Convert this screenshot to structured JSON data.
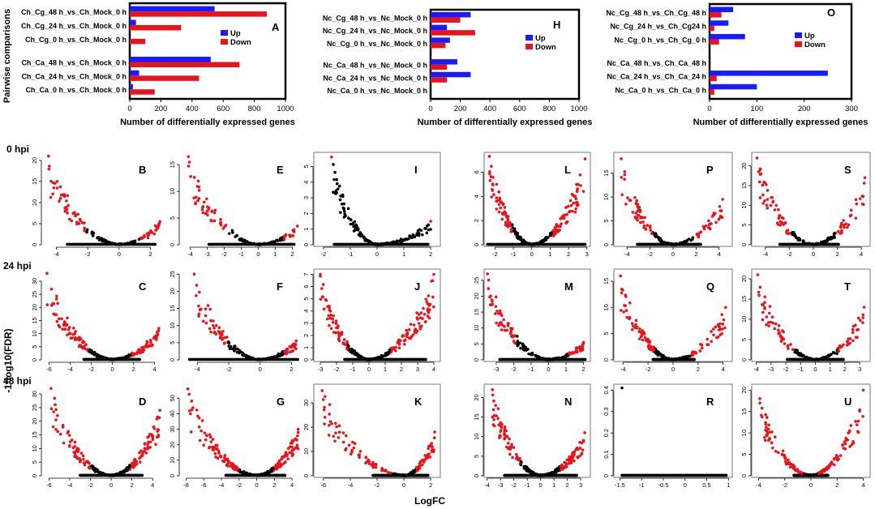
{
  "figure": {
    "row_labels": [
      "0 hpi",
      "24 hpi",
      "48 hpi"
    ],
    "y_axis_title": "-1*log10(FDR)",
    "x_axis_title": "LogFC"
  },
  "chart_data": [
    {
      "type": "bar",
      "panel": "A",
      "orientation": "horizontal",
      "ylabel": "Pairwise comparisons",
      "xlabel": "Number of differentially expressed genes",
      "xlim": [
        0,
        1000
      ],
      "xticks": [
        0,
        200,
        400,
        600,
        800,
        1000
      ],
      "legend": [
        "Up",
        "Down"
      ],
      "categories": [
        "Ch_Cg_48 h_vs_Ch_Mock_0 h",
        "Ch_Cg_24 h_vs_Ch_Mock_0 h",
        "Ch_Cg_0 h_vs_Ch_Mock_0 h",
        "Ch_Ca_48 h_vs_Ch_Mock_0 h",
        "Ch_Ca_24 h_vs_Ch_Mock_0 h",
        "Ch_Ca_0 h_vs_Ch_Mock_0 h"
      ],
      "series": [
        {
          "name": "Up",
          "values": [
            545,
            40,
            0,
            520,
            60,
            20
          ]
        },
        {
          "name": "Down",
          "values": [
            880,
            330,
            100,
            705,
            445,
            160
          ]
        }
      ]
    },
    {
      "type": "bar",
      "panel": "H",
      "orientation": "horizontal",
      "xlabel": "Number of differentially expressed genes",
      "xlim": [
        0,
        1000
      ],
      "xticks": [
        0,
        200,
        400,
        600,
        800,
        1000
      ],
      "legend": [
        "Up",
        "Down"
      ],
      "categories": [
        "Nc_Cg_48 h_vs_Nc_Mock_0 h",
        "Nc_Cg_24 h_vs_Nc_Mock_0 h",
        "Nc_Cg_0 h_vs_Nc_Mock_0 h",
        "Nc_Ca_48 h_vs_Nc_Mock_0 h",
        "Nc_Ca_24 h_vs_Nc_Mock_0 h",
        "Nc_Ca_0 h_vs_Nc_Mock_0 h"
      ],
      "series": [
        {
          "name": "Up",
          "values": [
            270,
            110,
            130,
            180,
            270,
            0
          ]
        },
        {
          "name": "Down",
          "values": [
            200,
            300,
            100,
            110,
            110,
            0
          ]
        }
      ]
    },
    {
      "type": "bar",
      "panel": "O",
      "orientation": "horizontal",
      "xlabel": "Number of differentially expressed genes",
      "xlim": [
        0,
        300
      ],
      "xticks": [
        0,
        100,
        200,
        300
      ],
      "legend": [
        "Up",
        "Down"
      ],
      "categories": [
        "Nc_Cg_48 h_vs_Ch_Cg_48 h",
        "Nc_Cg_24 h_vs_Ch_Cg24 h",
        "Nc_Cg_0 h_vs_Ch_Cg_0 h",
        "Nc_Ca_48 h_vs_Ch_Ca_48 h",
        "Nc_Ca_24 h_vs_Ch_Ca_24 h",
        "Nc_Ca_0 h_vs_Ch_Ca_0 h"
      ],
      "series": [
        {
          "name": "Up",
          "values": [
            50,
            40,
            75,
            0,
            250,
            100
          ]
        },
        {
          "name": "Down",
          "values": [
            25,
            10,
            20,
            0,
            15,
            10
          ]
        }
      ]
    },
    {
      "type": "scatter",
      "panel": "B",
      "xticks": [
        -4,
        -2,
        0,
        2
      ],
      "yticks": [
        0,
        5,
        10,
        15,
        20
      ],
      "xlim": [
        -4.8,
        2.8
      ],
      "ylim": [
        0,
        21.5
      ],
      "left_min": -4.5,
      "right_max": 2.6,
      "left_peak": 21,
      "right_peak": 5.5,
      "thr_left": -2.2,
      "thr_right": 1.3,
      "dense_left": 0.9,
      "dense_right": 0.5,
      "base_left": -3.3,
      "base_right": 2.3
    },
    {
      "type": "scatter",
      "panel": "E",
      "xticks": [
        -4,
        -3,
        -2,
        -1,
        0,
        1,
        2
      ],
      "yticks": [
        0,
        5,
        10,
        15
      ],
      "xlim": [
        -4.5,
        2.5
      ],
      "ylim": [
        0,
        17
      ],
      "left_min": -4.1,
      "right_max": 2.3,
      "left_peak": 16.5,
      "right_peak": 3.5,
      "thr_left": -1.8,
      "thr_right": 1.5,
      "dense_left": 0.8,
      "dense_right": 0.5,
      "base_left": -2.9,
      "base_right": 2.1
    },
    {
      "type": "scatter",
      "panel": "I",
      "xticks": [
        -2,
        -1,
        0,
        1,
        2
      ],
      "yticks": [
        0,
        1,
        2,
        3,
        4,
        5
      ],
      "xlim": [
        -2.3,
        2.3
      ],
      "ylim": [
        0,
        5.8
      ],
      "left_min": -1.7,
      "right_max": 2.0,
      "left_peak": 5.6,
      "right_peak": 1.5,
      "thr_left": -5,
      "thr_right": 5,
      "dense_left": 0.9,
      "dense_right": 0.9,
      "base_left": -1.6,
      "base_right": 1.9
    },
    {
      "type": "scatter",
      "panel": "L",
      "xticks": [
        -2,
        -1,
        0,
        1,
        2,
        3
      ],
      "yticks": [
        0,
        2,
        4,
        6
      ],
      "xlim": [
        -2.5,
        3.1
      ],
      "ylim": [
        0,
        7.5
      ],
      "left_min": -2.3,
      "right_max": 2.9,
      "left_peak": 7.3,
      "right_peak": 7.1,
      "thr_left": -1.1,
      "thr_right": 1.1,
      "dense_left": 1.4,
      "dense_right": 1.4,
      "base_left": -2.4,
      "base_right": 2.9
    },
    {
      "type": "scatter",
      "panel": "P",
      "xticks": [
        -4,
        -2,
        0,
        2,
        4
      ],
      "yticks": [
        0,
        5,
        10,
        15
      ],
      "xlim": [
        -5,
        5
      ],
      "ylim": [
        0,
        19
      ],
      "left_min": -4.5,
      "right_max": 4.3,
      "left_peak": 18,
      "right_peak": 9.5,
      "thr_left": -1.8,
      "thr_right": 1.8,
      "dense_left": 0.9,
      "dense_right": 0.6,
      "base_left": -3.1,
      "base_right": 2.4
    },
    {
      "type": "scatter",
      "panel": "S",
      "xticks": [
        -4,
        -2,
        0,
        2,
        4
      ],
      "yticks": [
        0,
        5,
        10,
        15,
        20
      ],
      "xlim": [
        -5,
        4.6
      ],
      "ylim": [
        0,
        23
      ],
      "left_min": -4.7,
      "right_max": 4.3,
      "left_peak": 22,
      "right_peak": 17,
      "thr_left": -1.8,
      "thr_right": 1.8,
      "dense_left": 0.8,
      "dense_right": 0.6,
      "base_left": -2.8,
      "base_right": 2.1
    },
    {
      "type": "scatter",
      "panel": "C",
      "xticks": [
        -6,
        -4,
        -2,
        0,
        2,
        4
      ],
      "yticks": [
        0,
        5,
        10,
        15,
        20,
        25,
        30
      ],
      "xlim": [
        -6.5,
        4.8
      ],
      "ylim": [
        0,
        34
      ],
      "left_min": -6.2,
      "right_max": 4.4,
      "left_peak": 33,
      "right_peak": 12,
      "thr_left": -2.3,
      "thr_right": 1.7,
      "dense_left": 1.5,
      "dense_right": 1.0,
      "base_left": -2.7,
      "base_right": 2.6
    },
    {
      "type": "scatter",
      "panel": "F",
      "xticks": [
        -4,
        -2,
        0,
        2
      ],
      "yticks": [
        0,
        5,
        10,
        15,
        20,
        25
      ],
      "xlim": [
        -5,
        2.6
      ],
      "ylim": [
        0,
        26
      ],
      "left_min": -4.2,
      "right_max": 2.3,
      "left_peak": 25,
      "right_peak": 5.5,
      "thr_left": -2.1,
      "thr_right": 1.5,
      "dense_left": 1.2,
      "dense_right": 0.7,
      "base_left": -4.5,
      "base_right": 2.4
    },
    {
      "type": "scatter",
      "panel": "J",
      "xticks": [
        -3,
        -2,
        -1,
        0,
        1,
        2,
        3,
        4
      ],
      "yticks": [
        0,
        1,
        2,
        3,
        4,
        5,
        6,
        7
      ],
      "xlim": [
        -3.3,
        4.3
      ],
      "ylim": [
        0,
        7.3
      ],
      "left_min": -3.0,
      "right_max": 4.0,
      "left_peak": 7.0,
      "right_peak": 7.0,
      "thr_left": -1.3,
      "thr_right": 1.3,
      "dense_left": 1.7,
      "dense_right": 1.8,
      "base_left": -1.5,
      "base_right": 3.5
    },
    {
      "type": "scatter",
      "panel": "M",
      "xticks": [
        -3,
        -2,
        -1,
        0,
        1,
        2
      ],
      "yticks": [
        0,
        5,
        10,
        15,
        20,
        25
      ],
      "xlim": [
        -3.6,
        2.3
      ],
      "ylim": [
        0,
        28
      ],
      "left_min": -3.5,
      "right_max": 2.0,
      "left_peak": 27,
      "right_peak": 5.5,
      "thr_left": -1.9,
      "thr_right": 1.1,
      "dense_left": 1.5,
      "dense_right": 1.0,
      "base_left": -2.8,
      "base_right": 2.1
    },
    {
      "type": "scatter",
      "panel": "Q",
      "xticks": [
        -4,
        -2,
        0,
        2,
        4
      ],
      "yticks": [
        0,
        5,
        10,
        15
      ],
      "xlim": [
        -4.6,
        4.6
      ],
      "ylim": [
        0,
        17
      ],
      "left_min": -4.2,
      "right_max": 4.2,
      "left_peak": 16,
      "right_peak": 10,
      "thr_left": -1.5,
      "thr_right": 1.4,
      "dense_left": 1.4,
      "dense_right": 0.7,
      "base_left": -1.6,
      "base_right": 1.7
    },
    {
      "type": "scatter",
      "panel": "T",
      "xticks": [
        -4,
        -3,
        -2,
        -1,
        0,
        1,
        2,
        3
      ],
      "yticks": [
        0,
        5,
        10,
        15,
        20
      ],
      "xlim": [
        -4.2,
        3.6
      ],
      "ylim": [
        0,
        22
      ],
      "left_min": -3.9,
      "right_max": 3.3,
      "left_peak": 21,
      "right_peak": 13,
      "thr_left": -1.5,
      "thr_right": 1.5,
      "dense_left": 0.8,
      "dense_right": 0.5,
      "base_left": -1.9,
      "base_right": 1.9
    },
    {
      "type": "scatter",
      "panel": "D",
      "xticks": [
        -6,
        -4,
        -2,
        0,
        2,
        4
      ],
      "yticks": [
        0,
        5,
        10,
        15,
        20,
        25,
        30
      ],
      "xlim": [
        -6.5,
        5
      ],
      "ylim": [
        0,
        33
      ],
      "left_min": -5.8,
      "right_max": 4.7,
      "left_peak": 32,
      "right_peak": 24,
      "thr_left": -2.0,
      "thr_right": 1.8,
      "dense_left": 1.8,
      "dense_right": 1.8,
      "base_left": -3.0,
      "base_right": 3.0
    },
    {
      "type": "scatter",
      "panel": "G",
      "xticks": [
        -8,
        -6,
        -4,
        -2,
        0,
        2,
        4
      ],
      "yticks": [
        0,
        10,
        20,
        30,
        40,
        50
      ],
      "xlim": [
        -8.5,
        5
      ],
      "ylim": [
        0,
        58
      ],
      "left_min": -7.8,
      "right_max": 4.7,
      "left_peak": 56,
      "right_peak": 30,
      "thr_left": -2.0,
      "thr_right": 1.9,
      "dense_left": 1.5,
      "dense_right": 1.5,
      "base_left": -3.5,
      "base_right": 3.2
    },
    {
      "type": "scatter",
      "panel": "K",
      "xticks": [
        -6,
        -4,
        -2,
        0,
        2
      ],
      "yticks": [
        0,
        10,
        20,
        30
      ],
      "xlim": [
        -6.6,
        2.6
      ],
      "ylim": [
        0,
        37
      ],
      "left_min": -6.1,
      "right_max": 2.3,
      "left_peak": 35,
      "right_peak": 18,
      "thr_left": -0.9,
      "thr_right": 0.9,
      "dense_left": 1.0,
      "dense_right": 1.0,
      "base_left": -2.3,
      "base_right": 1.8
    },
    {
      "type": "scatter",
      "panel": "N",
      "xticks": [
        -4,
        -3,
        -2,
        -1,
        0,
        1,
        2,
        3
      ],
      "yticks": [
        0,
        5,
        10,
        15,
        20
      ],
      "xlim": [
        -4.1,
        3.6
      ],
      "ylim": [
        0,
        23
      ],
      "left_min": -3.6,
      "right_max": 3.3,
      "left_peak": 22,
      "right_peak": 11,
      "thr_left": -1.5,
      "thr_right": 1.5,
      "dense_left": 1.8,
      "dense_right": 1.5,
      "base_left": -2.7,
      "base_right": 2.7
    },
    {
      "type": "scatter",
      "panel": "R",
      "xticks": [
        -1.5,
        -1.0,
        -0.5,
        0.0,
        0.5,
        1.0
      ],
      "yticks": [
        0.0,
        0.1,
        0.2,
        0.3,
        0.4
      ],
      "xlim": [
        -1.6,
        1.05
      ],
      "ylim": [
        0,
        0.42
      ],
      "flat": true,
      "flat_min": -1.45,
      "flat_max": 0.95,
      "outlier_x": -1.45,
      "outlier_y": 0.41
    },
    {
      "type": "scatter",
      "panel": "U",
      "xticks": [
        -4,
        -2,
        0,
        2,
        4
      ],
      "yticks": [
        0,
        5,
        10,
        15,
        20
      ],
      "xlim": [
        -4.4,
        4.4
      ],
      "ylim": [
        0,
        21
      ],
      "left_min": -3.9,
      "right_max": 4.0,
      "left_peak": 18,
      "right_peak": 20,
      "thr_left": -0.5,
      "thr_right": 0.5,
      "dense_left": 1.2,
      "dense_right": 0.9,
      "base_left": -1.3,
      "base_right": 1.3
    }
  ]
}
